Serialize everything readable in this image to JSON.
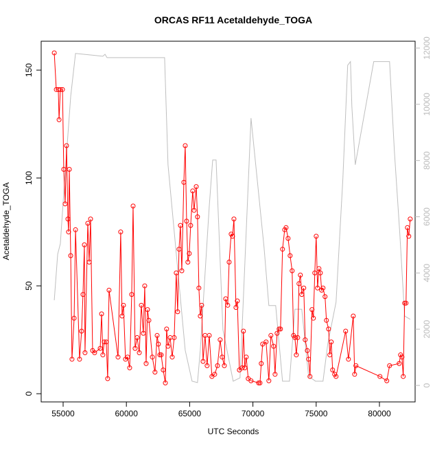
{
  "chart_data": {
    "type": "line",
    "title": "ORCAS RF11 Acetaldehyde_TOGA",
    "x_label": "UTC Seconds",
    "y_label": "Acetaldehyde_TOGA",
    "xlim": [
      53265,
      82820
    ],
    "ylim": [
      -3.8,
      163.4
    ],
    "y2lim": [
      -587,
      12244
    ],
    "xticks": [
      55000,
      60000,
      65000,
      70000,
      75000,
      80000
    ],
    "yticks": [
      0,
      50,
      100,
      150
    ],
    "y2ticks": [
      0,
      2000,
      4000,
      6000,
      8000,
      10000,
      12000
    ],
    "y2_color": "#bbbbbb",
    "series": [
      {
        "color": "#bebebe",
        "axis": "y2",
        "markers": false,
        "x": [
          54300,
          54570,
          54780,
          55110,
          55600,
          55980,
          58140,
          58310,
          58470,
          63020,
          63290,
          64650,
          65190,
          65620,
          65840,
          66550,
          66820,
          67090,
          67630,
          68440,
          68980,
          69850,
          70880,
          71260,
          71800,
          72340,
          72890,
          73320,
          73860,
          74400,
          74950,
          75540,
          75920,
          76570,
          77110,
          77490,
          77710,
          77820,
          78090,
          79550,
          80800,
          81180,
          81610,
          81990,
          82430
        ],
        "values": [
          3030,
          4670,
          5040,
          7240,
          10290,
          11810,
          11710,
          11780,
          11660,
          11660,
          7850,
          1250,
          150,
          100,
          1250,
          6380,
          8020,
          8020,
          1980,
          150,
          270,
          9510,
          4910,
          2840,
          2840,
          150,
          150,
          2710,
          2710,
          320,
          150,
          150,
          1490,
          2960,
          7360,
          11390,
          11520,
          9930,
          7850,
          11520,
          11520,
          8340,
          5400,
          2470,
          2350
        ]
      },
      {
        "color": "#ff0000",
        "axis": "y",
        "markers": true,
        "x": [
          54300,
          54460,
          54620,
          54680,
          54780,
          54950,
          55050,
          55160,
          55270,
          55380,
          55430,
          55490,
          55600,
          55700,
          55870,
          55980,
          56300,
          56460,
          56570,
          56680,
          56730,
          56950,
          57060,
          57170,
          57330,
          57490,
          57930,
          58040,
          58140,
          58250,
          58410,
          58520,
          58630,
          59340,
          59550,
          59660,
          59770,
          59930,
          60100,
          60260,
          60420,
          60530,
          60690,
          60850,
          61020,
          61180,
          61340,
          61450,
          61560,
          61670,
          61780,
          62050,
          62260,
          62430,
          62530,
          62640,
          62750,
          62910,
          63080,
          63180,
          63290,
          63460,
          63620,
          63780,
          63940,
          64050,
          64160,
          64270,
          64380,
          64540,
          64650,
          64760,
          64860,
          64970,
          65080,
          65240,
          65350,
          65520,
          65620,
          65730,
          65840,
          65950,
          66060,
          66220,
          66380,
          66550,
          66760,
          66980,
          67200,
          67410,
          67570,
          67740,
          67850,
          68010,
          68120,
          68280,
          68390,
          68500,
          68660,
          68770,
          68930,
          69150,
          69250,
          69360,
          69470,
          69630,
          69850,
          70450,
          70560,
          70660,
          70770,
          71040,
          71260,
          71420,
          71640,
          71750,
          71910,
          72070,
          72180,
          72340,
          72510,
          72620,
          72780,
          72940,
          73100,
          73210,
          73320,
          73430,
          73540,
          73640,
          73750,
          73860,
          74020,
          74130,
          74300,
          74400,
          74510,
          74670,
          74780,
          74890,
          75000,
          75110,
          75220,
          75330,
          75430,
          75540,
          75700,
          75810,
          75980,
          76080,
          76190,
          76300,
          76460,
          76570,
          77330,
          77550,
          77930,
          78040,
          78140,
          80040,
          80580,
          80800,
          81560,
          81670,
          81780,
          81880,
          81990,
          82100,
          82210,
          82320,
          82430
        ],
        "values": [
          158,
          141,
          141,
          127,
          141,
          141,
          104,
          88,
          115,
          81,
          75,
          104,
          64,
          16,
          35,
          76,
          16,
          29,
          46,
          69,
          19,
          79,
          61,
          81,
          20,
          19,
          21,
          37,
          18,
          24,
          24,
          7,
          48,
          17,
          75,
          36,
          41,
          16,
          17,
          12,
          46,
          87,
          21,
          26,
          19,
          41,
          28,
          50,
          14,
          39,
          34,
          17,
          10,
          27,
          23,
          18,
          18,
          11,
          5,
          30,
          22,
          26,
          17,
          26,
          56,
          38,
          67,
          78,
          57,
          98,
          115,
          80,
          61,
          65,
          78,
          94,
          85,
          96,
          82,
          49,
          36,
          41,
          15,
          27,
          13,
          27,
          8,
          9,
          13,
          25,
          17,
          13,
          44,
          41,
          61,
          74,
          73,
          81,
          40,
          43,
          11,
          12,
          29,
          12,
          17,
          7,
          6,
          5,
          5,
          14,
          23,
          24,
          6,
          27,
          22,
          9,
          28,
          30,
          30,
          67,
          76,
          77,
          72,
          64,
          57,
          27,
          26,
          18,
          26,
          51,
          55,
          46,
          49,
          25,
          20,
          16,
          8,
          39,
          35,
          56,
          73,
          49,
          58,
          56,
          48,
          49,
          45,
          34,
          30,
          18,
          24,
          11,
          9,
          8,
          29,
          16,
          36,
          9,
          13,
          8,
          6,
          13,
          14,
          18,
          17,
          8,
          42,
          42,
          77,
          73,
          81
        ]
      }
    ]
  }
}
